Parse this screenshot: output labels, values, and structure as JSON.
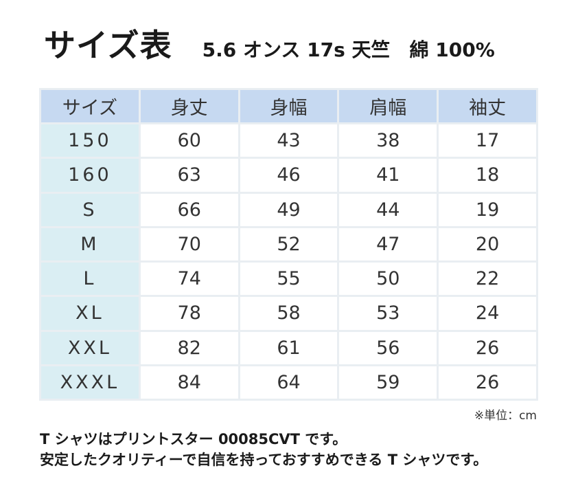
{
  "header": {
    "title": "サイズ表",
    "subtitle": "5.6 オンス 17s 天竺　綿 100%"
  },
  "table": {
    "columns": [
      "サイズ",
      "身丈",
      "身幅",
      "肩幅",
      "袖丈"
    ],
    "rows": [
      [
        "150",
        "60",
        "43",
        "38",
        "17"
      ],
      [
        "160",
        "63",
        "46",
        "41",
        "18"
      ],
      [
        "S",
        "66",
        "49",
        "44",
        "19"
      ],
      [
        "M",
        "70",
        "52",
        "47",
        "20"
      ],
      [
        "L",
        "74",
        "55",
        "50",
        "22"
      ],
      [
        "XL",
        "78",
        "58",
        "53",
        "24"
      ],
      [
        "XXL",
        "82",
        "61",
        "56",
        "26"
      ],
      [
        "XXXL",
        "84",
        "64",
        "59",
        "26"
      ]
    ]
  },
  "unit_note": "※単位：cm",
  "description": {
    "line1": "T シャツはプリントスター 00085CVT です。",
    "line2": "安定したクオリティーで自信を持っておすすめできる T シャツです。"
  },
  "colors": {
    "header_bg": "#c6d9f1",
    "size_col_bg": "#daeef3",
    "grid": "#e9eef2"
  }
}
